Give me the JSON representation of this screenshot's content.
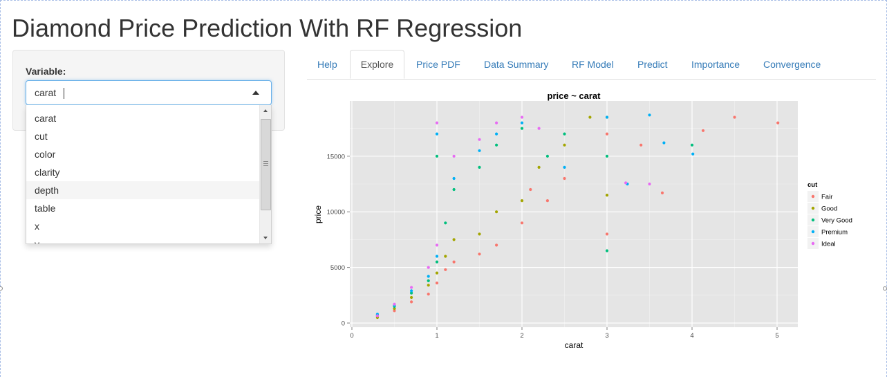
{
  "page": {
    "title": "Diamond Price Prediction With RF Regression"
  },
  "sidebar": {
    "variable_label": "Variable:",
    "select": {
      "value": "carat",
      "options": [
        "carat",
        "cut",
        "color",
        "clarity",
        "depth",
        "table",
        "x",
        "y"
      ],
      "highlighted": "depth"
    }
  },
  "tabs": [
    {
      "label": "Help",
      "active": false
    },
    {
      "label": "Explore",
      "active": true
    },
    {
      "label": "Price PDF",
      "active": false
    },
    {
      "label": "Data Summary",
      "active": false
    },
    {
      "label": "RF Model",
      "active": false
    },
    {
      "label": "Predict",
      "active": false
    },
    {
      "label": "Importance",
      "active": false
    },
    {
      "label": "Convergence",
      "active": false
    }
  ],
  "colors": {
    "link": "#337ab7",
    "focus_border": "#66afe9",
    "panel_bg": "#e5e5e5",
    "cut_fair": "#F8766D",
    "cut_good": "#A3A500",
    "cut_very_good": "#00BF7D",
    "cut_premium": "#00B0F6",
    "cut_ideal": "#E76BF3"
  },
  "chart_data": {
    "type": "scatter",
    "title": "price ~ carat",
    "xlabel": "carat",
    "ylabel": "price",
    "xlim": [
      0,
      5.2
    ],
    "ylim": [
      0,
      19000
    ],
    "xticks": [
      0,
      1,
      2,
      3,
      4,
      5
    ],
    "yticks": [
      0,
      5000,
      10000,
      15000
    ],
    "grid": true,
    "legend_title": "cut",
    "legend_position": "right",
    "series": [
      {
        "name": "Fair",
        "color": "#F8766D",
        "points": [
          [
            0.3,
            600
          ],
          [
            0.5,
            1100
          ],
          [
            0.7,
            1900
          ],
          [
            0.9,
            2600
          ],
          [
            1.0,
            3600
          ],
          [
            1.1,
            4800
          ],
          [
            1.2,
            5500
          ],
          [
            1.5,
            6200
          ],
          [
            1.7,
            7000
          ],
          [
            2.0,
            9000
          ],
          [
            2.1,
            12000
          ],
          [
            2.3,
            11000
          ],
          [
            2.5,
            13000
          ],
          [
            3.0,
            8000
          ],
          [
            3.0,
            17000
          ],
          [
            3.4,
            16000
          ],
          [
            3.65,
            11700
          ],
          [
            4.13,
            17300
          ],
          [
            4.5,
            18500
          ],
          [
            5.01,
            18000
          ]
        ]
      },
      {
        "name": "Good",
        "color": "#A3A500",
        "points": [
          [
            0.3,
            500
          ],
          [
            0.5,
            1300
          ],
          [
            0.7,
            2300
          ],
          [
            0.9,
            3400
          ],
          [
            1.0,
            4500
          ],
          [
            1.1,
            6000
          ],
          [
            1.2,
            7500
          ],
          [
            1.5,
            8000
          ],
          [
            1.7,
            10000
          ],
          [
            2.0,
            11000
          ],
          [
            2.2,
            14000
          ],
          [
            2.5,
            16000
          ],
          [
            2.8,
            18500
          ],
          [
            3.0,
            11500
          ],
          [
            3.0,
            18500
          ]
        ]
      },
      {
        "name": "Very Good",
        "color": "#00BF7D",
        "points": [
          [
            0.3,
            700
          ],
          [
            0.5,
            1500
          ],
          [
            0.7,
            2700
          ],
          [
            0.9,
            3800
          ],
          [
            1.0,
            5500
          ],
          [
            1.0,
            15000
          ],
          [
            1.1,
            9000
          ],
          [
            1.2,
            12000
          ],
          [
            1.5,
            14000
          ],
          [
            1.7,
            16000
          ],
          [
            2.0,
            17500
          ],
          [
            2.3,
            15000
          ],
          [
            2.5,
            17000
          ],
          [
            3.0,
            6500
          ],
          [
            3.0,
            15000
          ],
          [
            4.0,
            16000
          ]
        ]
      },
      {
        "name": "Premium",
        "color": "#00B0F6",
        "points": [
          [
            0.3,
            800
          ],
          [
            0.5,
            1600
          ],
          [
            0.7,
            2900
          ],
          [
            0.9,
            4200
          ],
          [
            1.0,
            6000
          ],
          [
            1.0,
            17000
          ],
          [
            1.2,
            13000
          ],
          [
            1.5,
            15500
          ],
          [
            1.7,
            17000
          ],
          [
            2.0,
            18000
          ],
          [
            2.5,
            14000
          ],
          [
            3.0,
            18500
          ],
          [
            3.24,
            12500
          ],
          [
            3.5,
            18700
          ],
          [
            3.67,
            16200
          ],
          [
            4.01,
            15200
          ]
        ]
      },
      {
        "name": "Ideal",
        "color": "#E76BF3",
        "points": [
          [
            0.3,
            650
          ],
          [
            0.5,
            1700
          ],
          [
            0.7,
            3200
          ],
          [
            0.9,
            5000
          ],
          [
            1.0,
            7000
          ],
          [
            1.0,
            18000
          ],
          [
            1.2,
            15000
          ],
          [
            1.5,
            16500
          ],
          [
            1.7,
            18000
          ],
          [
            2.0,
            18500
          ],
          [
            2.2,
            17500
          ],
          [
            3.22,
            12600
          ],
          [
            3.5,
            12500
          ]
        ]
      }
    ]
  }
}
